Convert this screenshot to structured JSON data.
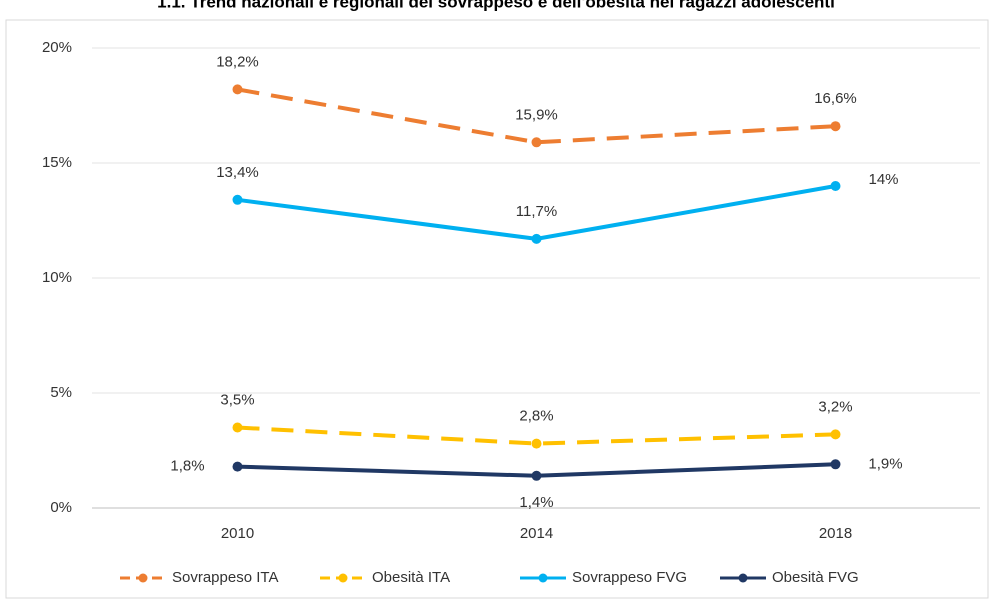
{
  "chart_data": {
    "type": "line",
    "title": "1.1. Trend nazionali e regionali del sovrappeso e dell'obesità nei ragazzi adolescenti",
    "categories": [
      "2010",
      "2014",
      "2018"
    ],
    "series": [
      {
        "name": "Sovrappeso ITA",
        "color": "#ED7D31",
        "dashed": true,
        "values": [
          18.2,
          15.9,
          16.6
        ],
        "value_labels": [
          "18,2%",
          "15,9%",
          "16,6%"
        ]
      },
      {
        "name": "Obesità ITA",
        "color": "#FFC000",
        "dashed": true,
        "values": [
          3.5,
          2.8,
          3.2
        ],
        "value_labels": [
          "3,5%",
          "2,8%",
          "3,2%"
        ]
      },
      {
        "name": "Sovrappeso FVG",
        "color": "#00B0F0",
        "dashed": false,
        "values": [
          13.4,
          11.7,
          14
        ],
        "value_labels": [
          "13,4%",
          "11,7%",
          "14%"
        ]
      },
      {
        "name": "Obesità FVG",
        "color": "#203864",
        "dashed": false,
        "values": [
          1.8,
          1.4,
          1.9
        ],
        "value_labels": [
          "1,8%",
          "1,4%",
          "1,9%"
        ]
      }
    ],
    "ylim": [
      0,
      20
    ],
    "yticks": [
      {
        "value": 0,
        "label": "0%"
      },
      {
        "value": 5,
        "label": "5%"
      },
      {
        "value": 10,
        "label": "10%"
      },
      {
        "value": 15,
        "label": "15%"
      },
      {
        "value": 20,
        "label": "20%"
      }
    ],
    "grid": true,
    "legend": "bottom"
  }
}
